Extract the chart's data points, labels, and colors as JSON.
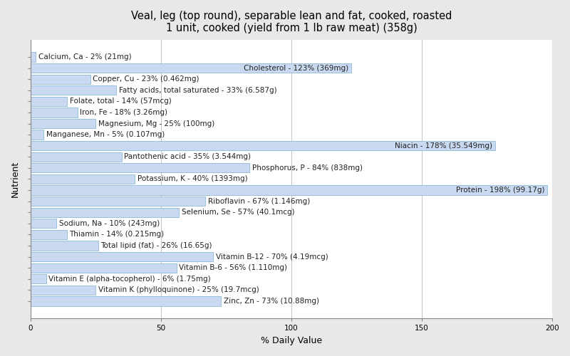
{
  "title": "Veal, leg (top round), separable lean and fat, cooked, roasted\n1 unit, cooked (yield from 1 lb raw meat) (358g)",
  "xlabel": "% Daily Value",
  "ylabel": "Nutrient",
  "nutrients": [
    {
      "label": "Calcium, Ca - 2% (21mg)",
      "value": 2
    },
    {
      "label": "Cholesterol - 123% (369mg)",
      "value": 123
    },
    {
      "label": "Copper, Cu - 23% (0.462mg)",
      "value": 23
    },
    {
      "label": "Fatty acids, total saturated - 33% (6.587g)",
      "value": 33
    },
    {
      "label": "Folate, total - 14% (57mcg)",
      "value": 14
    },
    {
      "label": "Iron, Fe - 18% (3.26mg)",
      "value": 18
    },
    {
      "label": "Magnesium, Mg - 25% (100mg)",
      "value": 25
    },
    {
      "label": "Manganese, Mn - 5% (0.107mg)",
      "value": 5
    },
    {
      "label": "Niacin - 178% (35.549mg)",
      "value": 178
    },
    {
      "label": "Pantothenic acid - 35% (3.544mg)",
      "value": 35
    },
    {
      "label": "Phosphorus, P - 84% (838mg)",
      "value": 84
    },
    {
      "label": "Potassium, K - 40% (1393mg)",
      "value": 40
    },
    {
      "label": "Protein - 198% (99.17g)",
      "value": 198
    },
    {
      "label": "Riboflavin - 67% (1.146mg)",
      "value": 67
    },
    {
      "label": "Selenium, Se - 57% (40.1mcg)",
      "value": 57
    },
    {
      "label": "Sodium, Na - 10% (243mg)",
      "value": 10
    },
    {
      "label": "Thiamin - 14% (0.215mg)",
      "value": 14
    },
    {
      "label": "Total lipid (fat) - 26% (16.65g)",
      "value": 26
    },
    {
      "label": "Vitamin B-12 - 70% (4.19mcg)",
      "value": 70
    },
    {
      "label": "Vitamin B-6 - 56% (1.110mg)",
      "value": 56
    },
    {
      "label": "Vitamin E (alpha-tocopherol) - 6% (1.75mg)",
      "value": 6
    },
    {
      "label": "Vitamin K (phylloquinone) - 25% (19.7mcg)",
      "value": 25
    },
    {
      "label": "Zinc, Zn - 73% (10.88mg)",
      "value": 73
    }
  ],
  "bar_color": "#c9d9f0",
  "bar_edge_color": "#7bafd4",
  "background_color": "#e8e8e8",
  "plot_background_color": "#ffffff",
  "xlim": [
    0,
    200
  ],
  "xticks": [
    0,
    50,
    100,
    150,
    200
  ],
  "title_fontsize": 10.5,
  "label_fontsize": 7.5,
  "axis_label_fontsize": 9,
  "ylabel_fontsize": 9
}
